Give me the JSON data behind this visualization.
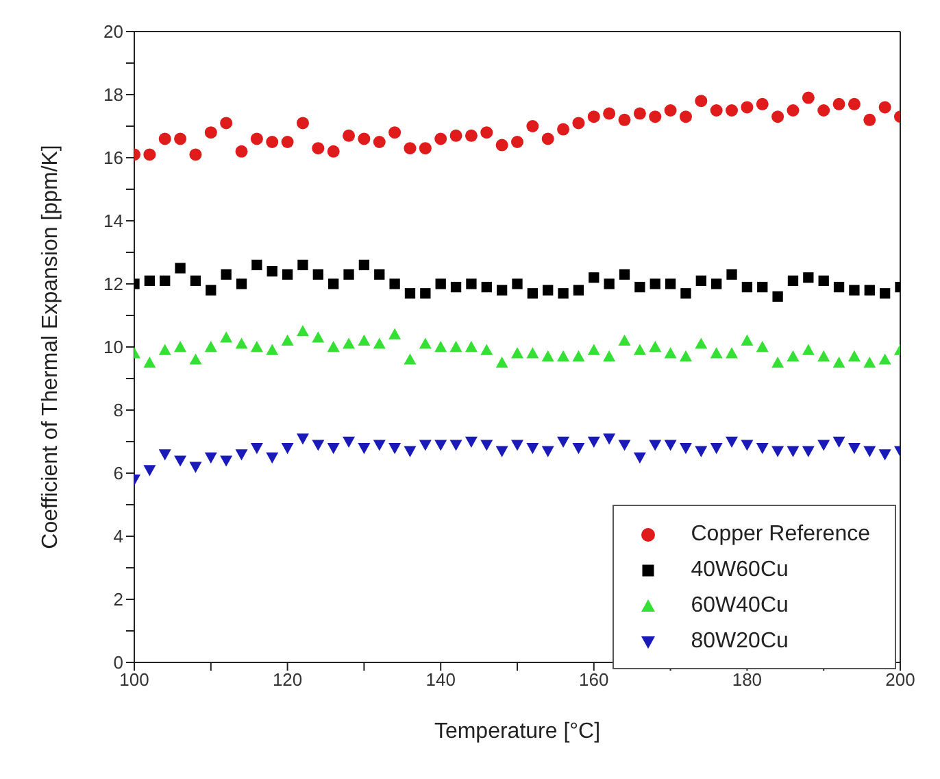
{
  "chart_data": {
    "type": "scatter",
    "xlabel": "Temperature [°C]",
    "ylabel": "Coefficient of Thermal Expansion [ppm/K]",
    "x": [
      100,
      102,
      104,
      106,
      108,
      110,
      112,
      114,
      116,
      118,
      120,
      122,
      124,
      126,
      128,
      130,
      132,
      134,
      136,
      138,
      140,
      142,
      144,
      146,
      148,
      150,
      152,
      154,
      156,
      158,
      160,
      162,
      164,
      166,
      168,
      170,
      172,
      174,
      176,
      178,
      180,
      182,
      184,
      186,
      188,
      190,
      192,
      194,
      196,
      198,
      200
    ],
    "xlim": [
      100,
      200
    ],
    "xticks": [
      100,
      120,
      140,
      160,
      180,
      200
    ],
    "ylim": [
      0,
      20
    ],
    "yticks": [
      0,
      2,
      4,
      6,
      8,
      10,
      12,
      14,
      16,
      18,
      20
    ],
    "legend": "bottom right",
    "series": [
      {
        "name": "Copper Reference",
        "color": "#e01b1b",
        "marker": "circle",
        "values": [
          16.1,
          16.1,
          16.6,
          16.6,
          16.1,
          16.8,
          17.1,
          16.2,
          16.6,
          16.5,
          16.5,
          17.1,
          16.3,
          16.2,
          16.7,
          16.6,
          16.5,
          16.8,
          16.3,
          16.3,
          16.6,
          16.7,
          16.7,
          16.8,
          16.4,
          16.5,
          17.0,
          16.6,
          16.9,
          17.1,
          17.3,
          17.4,
          17.2,
          17.4,
          17.3,
          17.5,
          17.3,
          17.8,
          17.5,
          17.5,
          17.6,
          17.7,
          17.3,
          17.5,
          17.9,
          17.5,
          17.7,
          17.7,
          17.2,
          17.6,
          17.3
        ]
      },
      {
        "name": "40W60Cu",
        "color": "#000000",
        "marker": "square",
        "values": [
          12.0,
          12.1,
          12.1,
          12.5,
          12.1,
          11.8,
          12.3,
          12.0,
          12.6,
          12.4,
          12.3,
          12.6,
          12.3,
          12.0,
          12.3,
          12.6,
          12.3,
          12.0,
          11.7,
          11.7,
          12.0,
          11.9,
          12.0,
          11.9,
          11.8,
          12.0,
          11.7,
          11.8,
          11.7,
          11.8,
          12.2,
          12.0,
          12.3,
          11.9,
          12.0,
          12.0,
          11.7,
          12.1,
          12.0,
          12.3,
          11.9,
          11.9,
          11.6,
          12.1,
          12.2,
          12.1,
          11.9,
          11.8,
          11.8,
          11.7,
          11.9
        ]
      },
      {
        "name": "60W40Cu",
        "color": "#33e033",
        "marker": "triangle",
        "values": [
          9.8,
          9.5,
          9.9,
          10.0,
          9.6,
          10.0,
          10.3,
          10.1,
          10.0,
          9.9,
          10.2,
          10.5,
          10.3,
          10.0,
          10.1,
          10.2,
          10.1,
          10.4,
          9.6,
          10.1,
          10.0,
          10.0,
          10.0,
          9.9,
          9.5,
          9.8,
          9.8,
          9.7,
          9.7,
          9.7,
          9.9,
          9.7,
          10.2,
          9.9,
          10.0,
          9.8,
          9.7,
          10.1,
          9.8,
          9.8,
          10.2,
          10.0,
          9.5,
          9.7,
          9.9,
          9.7,
          9.5,
          9.7,
          9.5,
          9.6,
          9.9
        ]
      },
      {
        "name": "80W20Cu",
        "color": "#1a1ab8",
        "marker": "triangle-down",
        "values": [
          5.8,
          6.1,
          6.6,
          6.4,
          6.2,
          6.5,
          6.4,
          6.6,
          6.8,
          6.5,
          6.8,
          7.1,
          6.9,
          6.8,
          7.0,
          6.8,
          6.9,
          6.8,
          6.7,
          6.9,
          6.9,
          6.9,
          7.0,
          6.9,
          6.7,
          6.9,
          6.8,
          6.7,
          7.0,
          6.8,
          7.0,
          7.1,
          6.9,
          6.5,
          6.9,
          6.9,
          6.8,
          6.7,
          6.8,
          7.0,
          6.9,
          6.8,
          6.7,
          6.7,
          6.7,
          6.9,
          7.0,
          6.8,
          6.7,
          6.6,
          6.7
        ]
      }
    ]
  }
}
